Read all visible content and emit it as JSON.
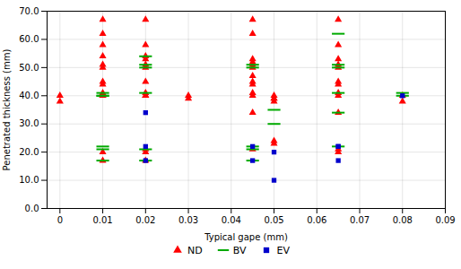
{
  "chart_data": {
    "type": "scatter",
    "xlabel": "Typical gape (mm)",
    "ylabel": "Penetrated thickness (mm)",
    "xlim": [
      -0.003,
      0.09
    ],
    "ylim": [
      0.0,
      70.0
    ],
    "xticks": [
      0,
      0.01,
      0.02,
      0.03,
      0.04,
      0.05,
      0.06,
      0.07,
      0.08,
      0.09
    ],
    "yticks": [
      {
        "value": 0.0,
        "label": "0.0"
      },
      {
        "value": 10.0,
        "label": "10.0"
      },
      {
        "value": 20.0,
        "label": "20.0"
      },
      {
        "value": 30.0,
        "label": "30.0"
      },
      {
        "value": 40.0,
        "label": "40.0"
      },
      {
        "value": 50.0,
        "label": "50.0"
      },
      {
        "value": 60.0,
        "label": "60.0"
      },
      {
        "value": 70.0,
        "label": "70.0"
      }
    ],
    "grid": true,
    "legend": "bottom",
    "series": [
      {
        "name": "ND",
        "color": "#ff0000",
        "marker": "triangle",
        "x": [
          0,
          0,
          0.01,
          0.01,
          0.01,
          0.01,
          0.01,
          0.01,
          0.01,
          0.01,
          0.01,
          0.01,
          0.01,
          0.01,
          0.01,
          0.02,
          0.02,
          0.02,
          0.02,
          0.02,
          0.02,
          0.02,
          0.02,
          0.02,
          0.02,
          0.02,
          0.02,
          0.02,
          0.03,
          0.03,
          0.045,
          0.045,
          0.045,
          0.045,
          0.045,
          0.045,
          0.045,
          0.045,
          0.045,
          0.045,
          0.045,
          0.045,
          0.045,
          0.05,
          0.05,
          0.05,
          0.05,
          0.05,
          0.05,
          0.065,
          0.065,
          0.065,
          0.065,
          0.065,
          0.065,
          0.065,
          0.065,
          0.065,
          0.065,
          0.065,
          0.065,
          0.08,
          0.08
        ],
        "values": [
          40,
          38,
          67,
          62,
          58,
          54,
          51,
          50,
          45,
          44,
          41,
          40,
          40,
          20,
          17,
          67,
          58,
          54,
          53,
          51,
          50,
          45,
          41,
          40,
          40,
          21,
          20,
          17,
          40,
          39,
          67,
          62,
          53,
          52,
          51,
          50,
          47,
          45,
          44,
          41,
          40,
          34,
          21,
          40,
          39,
          39,
          38,
          24,
          23,
          67,
          58,
          53,
          51,
          50,
          45,
          44,
          41,
          40,
          34,
          21,
          20,
          40,
          38
        ]
      },
      {
        "name": "BV",
        "color": "#00aa00",
        "marker": "dash",
        "x": [
          0.01,
          0.01,
          0.01,
          0.01,
          0.01,
          0.01,
          0.02,
          0.02,
          0.02,
          0.02,
          0.02,
          0.02,
          0.045,
          0.045,
          0.045,
          0.045,
          0.045,
          0.05,
          0.05,
          0.065,
          0.065,
          0.065,
          0.065,
          0.065,
          0.065,
          0.08,
          0.08
        ],
        "values": [
          41,
          40,
          40,
          22,
          21,
          17,
          54,
          51,
          50,
          41,
          21,
          17,
          51,
          50,
          22,
          21,
          17,
          35,
          30,
          62,
          51,
          50,
          41,
          34,
          22,
          41,
          40
        ]
      },
      {
        "name": "EV",
        "color": "#0000cc",
        "marker": "square",
        "x": [
          0.02,
          0.02,
          0.02,
          0.045,
          0.045,
          0.05,
          0.05,
          0.065,
          0.065,
          0.065,
          0.08
        ],
        "values": [
          34,
          22,
          17,
          22,
          17,
          20,
          10,
          22,
          22,
          17,
          40
        ]
      }
    ]
  }
}
